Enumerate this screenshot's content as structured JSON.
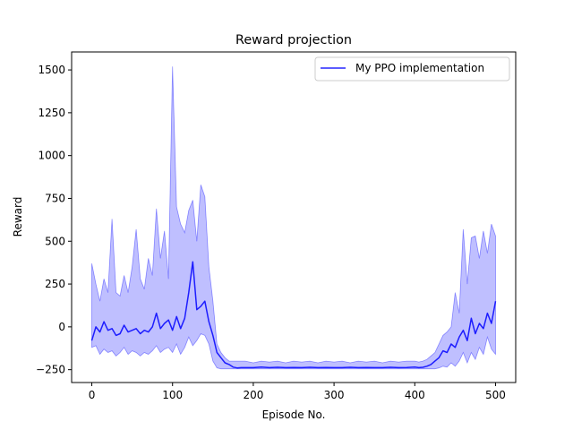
{
  "chart_data": {
    "type": "line",
    "title": "Reward projection",
    "xlabel": "Episode No.",
    "ylabel": "Reward",
    "xlim": [
      -25,
      525
    ],
    "ylim": [
      -325,
      1605
    ],
    "xticks": [
      0,
      100,
      200,
      300,
      400,
      500
    ],
    "yticks": [
      -250,
      0,
      250,
      500,
      750,
      1000,
      1250,
      1500
    ],
    "grid": false,
    "legend_position": "top-right",
    "series": [
      {
        "name": "My PPO implementation",
        "color": "#0000ff",
        "style": "mean line with shaded min/max band",
        "x": [
          0,
          5,
          10,
          15,
          20,
          25,
          30,
          35,
          40,
          45,
          50,
          55,
          60,
          65,
          70,
          75,
          80,
          85,
          90,
          95,
          100,
          105,
          110,
          115,
          120,
          125,
          130,
          135,
          140,
          145,
          150,
          155,
          160,
          165,
          170,
          175,
          180,
          185,
          190,
          200,
          210,
          220,
          230,
          240,
          250,
          260,
          270,
          280,
          290,
          300,
          310,
          320,
          330,
          340,
          350,
          360,
          370,
          380,
          390,
          400,
          405,
          410,
          415,
          420,
          425,
          430,
          435,
          440,
          445,
          450,
          455,
          460,
          465,
          470,
          475,
          480,
          485,
          490,
          495,
          500
        ],
        "y": [
          -80,
          0,
          -30,
          30,
          -20,
          -10,
          -50,
          -40,
          10,
          -30,
          -20,
          -10,
          -40,
          -20,
          -30,
          0,
          80,
          -10,
          20,
          40,
          -20,
          60,
          -10,
          50,
          200,
          380,
          100,
          120,
          150,
          30,
          -50,
          -150,
          -180,
          -210,
          -220,
          -235,
          -240,
          -238,
          -238,
          -238,
          -235,
          -238,
          -236,
          -238,
          -237,
          -238,
          -236,
          -238,
          -237,
          -238,
          -238,
          -236,
          -238,
          -237,
          -238,
          -238,
          -236,
          -238,
          -237,
          -235,
          -238,
          -236,
          -230,
          -220,
          -200,
          -180,
          -140,
          -150,
          -100,
          -120,
          -60,
          -20,
          -80,
          50,
          -40,
          20,
          -10,
          80,
          20,
          150
        ],
        "max": [
          370,
          250,
          150,
          280,
          200,
          630,
          200,
          180,
          300,
          200,
          350,
          570,
          280,
          220,
          400,
          300,
          690,
          400,
          560,
          280,
          1520,
          700,
          600,
          550,
          680,
          740,
          500,
          830,
          760,
          350,
          150,
          -100,
          -150,
          -180,
          -200,
          -200,
          -200,
          -200,
          -200,
          -210,
          -200,
          -205,
          -200,
          -210,
          -200,
          -205,
          -200,
          -210,
          -200,
          -205,
          -200,
          -210,
          -200,
          -205,
          -200,
          -210,
          -200,
          -205,
          -200,
          -200,
          -205,
          -200,
          -190,
          -170,
          -150,
          -100,
          -50,
          -30,
          0,
          200,
          80,
          570,
          250,
          520,
          530,
          400,
          560,
          430,
          600,
          530
        ],
        "min": [
          -120,
          -110,
          -160,
          -130,
          -150,
          -140,
          -170,
          -150,
          -120,
          -160,
          -140,
          -150,
          -170,
          -150,
          -160,
          -140,
          -110,
          -150,
          -130,
          -120,
          -150,
          -100,
          -160,
          -120,
          -60,
          -110,
          -80,
          -40,
          -50,
          -100,
          -200,
          -240,
          -245,
          -245,
          -245,
          -245,
          -245,
          -245,
          -245,
          -245,
          -245,
          -245,
          -245,
          -245,
          -245,
          -245,
          -245,
          -245,
          -245,
          -245,
          -245,
          -245,
          -245,
          -245,
          -245,
          -245,
          -245,
          -245,
          -245,
          -245,
          -245,
          -245,
          -245,
          -245,
          -245,
          -240,
          -230,
          -235,
          -210,
          -230,
          -200,
          -150,
          -210,
          -150,
          -190,
          -120,
          -160,
          -60,
          -130,
          -160
        ]
      }
    ]
  }
}
